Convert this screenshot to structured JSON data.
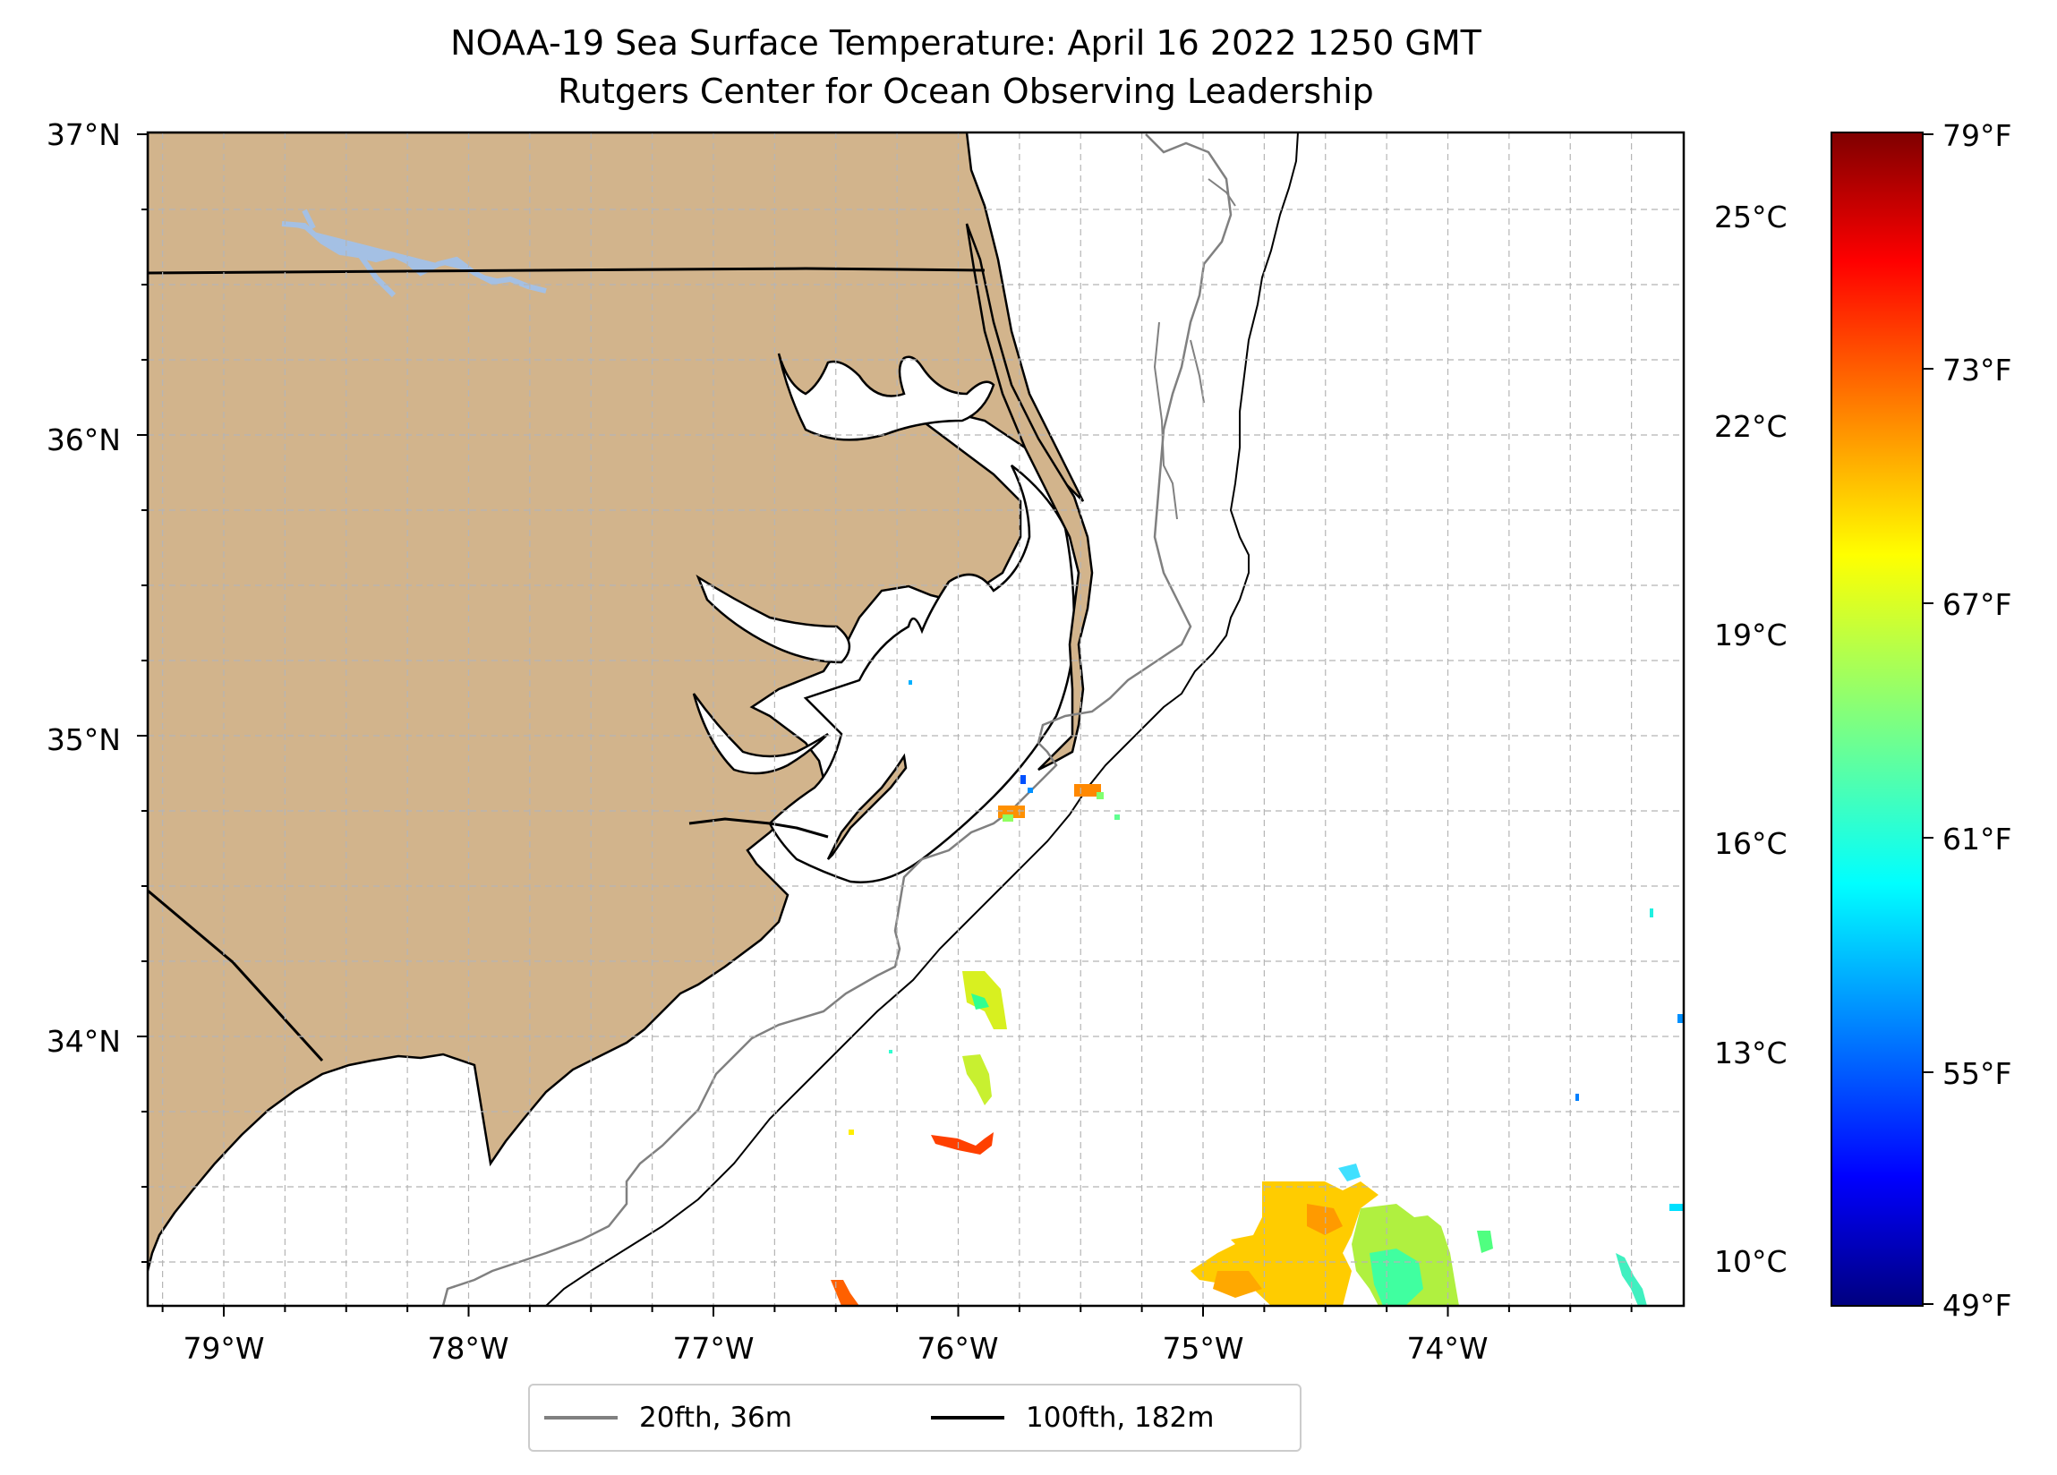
{
  "title": "NOAA-19 Sea Surface Temperature: April 16 2022 1250 GMT",
  "subtitle": "Rutgers Center for Ocean Observing Leadership",
  "map": {
    "lon_range": [
      -79.3,
      -73.1
    ],
    "lat_range": [
      33.1,
      37.0
    ],
    "lon_ticks": [
      "79°W",
      "78°W",
      "77°W",
      "76°W",
      "75°W",
      "74°W"
    ],
    "lat_ticks": [
      "37°N",
      "36°N",
      "35°N",
      "34°N"
    ],
    "colors": {
      "land": "#d2b48c",
      "lake": "#a4c0e4",
      "gridlines": "#b5b5b5",
      "frame": "#000000"
    }
  },
  "legend": [
    {
      "label": "20fth, 36m",
      "color": "#808080"
    },
    {
      "label": "100fth, 182m",
      "color": "#000000"
    }
  ],
  "colorbar": {
    "colormap": "jet",
    "range_f": [
      49,
      79
    ],
    "celsius_ticks": [
      "25°C",
      "22°C",
      "19°C",
      "16°C",
      "13°C",
      "10°C"
    ],
    "fahrenheit_ticks": [
      "79°F",
      "73°F",
      "67°F",
      "61°F",
      "55°F",
      "49°F"
    ]
  }
}
